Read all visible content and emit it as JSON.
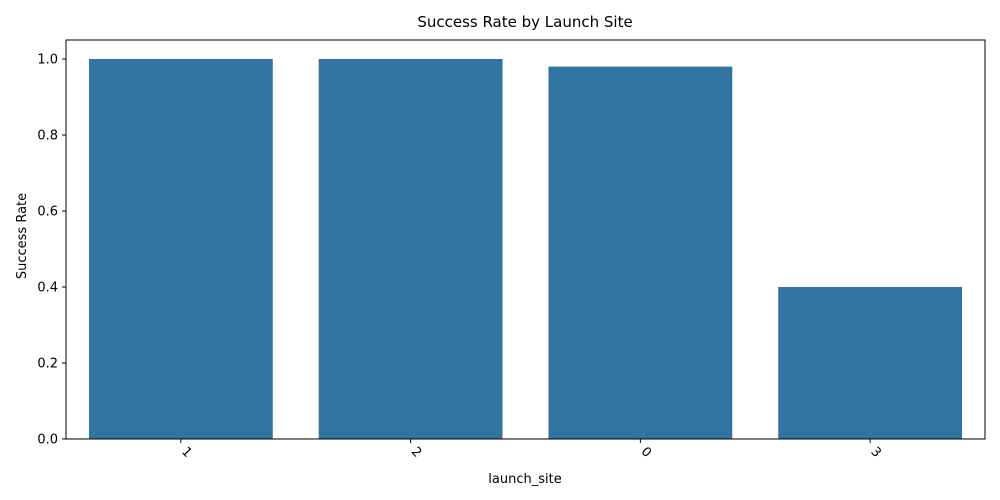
{
  "chart_data": {
    "type": "bar",
    "title": "Success Rate by Launch Site",
    "xlabel": "launch_site",
    "ylabel": "Success Rate",
    "categories": [
      "1",
      "2",
      "0",
      "3"
    ],
    "values": [
      1.0,
      1.0,
      0.98,
      0.4
    ],
    "ylim": [
      0,
      1.05
    ],
    "yticks": [
      0.0,
      0.2,
      0.4,
      0.6,
      0.8,
      1.0
    ],
    "ytick_labels": [
      "0.0",
      "0.2",
      "0.4",
      "0.6",
      "0.8",
      "1.0"
    ],
    "xtick_rotation_deg": 45,
    "grid": false,
    "legend": "none",
    "bar_color": "#3274a1"
  }
}
